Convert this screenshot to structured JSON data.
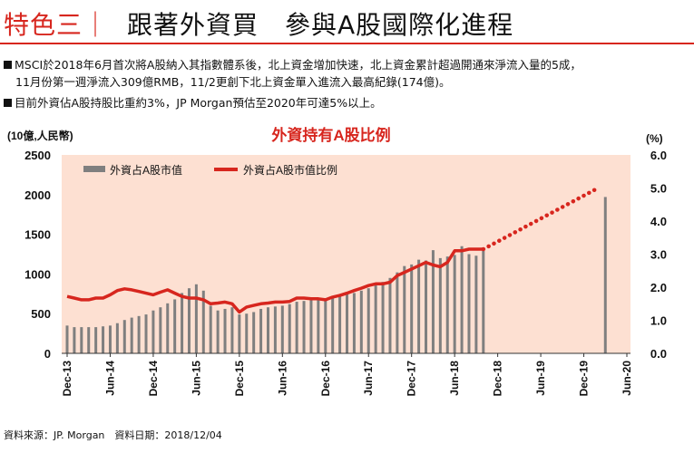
{
  "header": {
    "title_red": "特色三｜",
    "title_main": "跟著外資買　參與A股國際化進程"
  },
  "bullets": [
    {
      "line1": "MSCI於2018年6月首次將A股納入其指數體系後，北上資金增加快速，北上資金累計超過開通來淨流入量的5成，",
      "line2": "11月份第一週淨流入309億RMB，11/2更創下北上資金單入進流入最高紀錄(174億)。"
    },
    {
      "line1": "目前外資佔A股持股比重約3%，JP Morgan預估至2020年可達5%以上。"
    }
  ],
  "source": "資料來源：JP. Morgan　資料日期：2018/12/04",
  "colors": {
    "accent_red": "#d7261e",
    "plot_bg": "#fde0d2",
    "bar": "#7f7f7f"
  },
  "chart_data": {
    "type": "bar+line",
    "title": "外資持有A股比例",
    "left_axis_label": "(10億,人民幣)",
    "right_axis_label": "(%)",
    "ylim_left": [
      0,
      2500
    ],
    "ylim_right": [
      0,
      6
    ],
    "left_ticks": [
      "0",
      "500",
      "1000",
      "1500",
      "2000",
      "2500"
    ],
    "right_ticks": [
      "0.0",
      "1.0",
      "2.0",
      "3.0",
      "4.0",
      "5.0",
      "6.0"
    ],
    "x_ticks": [
      "Dec-13",
      "Jun-14",
      "Dec-14",
      "Jun-15",
      "Dec-15",
      "Jun-16",
      "Dec-16",
      "Jun-17",
      "Dec-17",
      "Jun-18",
      "Dec-18",
      "Jun-19",
      "Dec-19",
      "Jun-20"
    ],
    "legend": [
      "外資占A股市值",
      "外資占A股市值比例"
    ],
    "legend_position": "top-left",
    "bars": {
      "name": "外資占A股市值",
      "months": [
        "2013-12",
        "2014-01",
        "2014-02",
        "2014-03",
        "2014-04",
        "2014-05",
        "2014-06",
        "2014-07",
        "2014-08",
        "2014-09",
        "2014-10",
        "2014-11",
        "2014-12",
        "2015-01",
        "2015-02",
        "2015-03",
        "2015-04",
        "2015-05",
        "2015-06",
        "2015-07",
        "2015-08",
        "2015-09",
        "2015-10",
        "2015-11",
        "2015-12",
        "2016-01",
        "2016-02",
        "2016-03",
        "2016-04",
        "2016-05",
        "2016-06",
        "2016-07",
        "2016-08",
        "2016-09",
        "2016-10",
        "2016-11",
        "2016-12",
        "2017-01",
        "2017-02",
        "2017-03",
        "2017-04",
        "2017-05",
        "2017-06",
        "2017-07",
        "2017-08",
        "2017-09",
        "2017-10",
        "2017-11",
        "2017-12",
        "2018-01",
        "2018-02",
        "2018-03",
        "2018-04",
        "2018-05",
        "2018-06",
        "2018-07",
        "2018-08",
        "2018-09",
        "2018-10",
        "2020-03"
      ],
      "values": [
        350,
        330,
        330,
        330,
        330,
        340,
        350,
        380,
        420,
        450,
        470,
        490,
        540,
        580,
        630,
        680,
        760,
        820,
        870,
        790,
        600,
        540,
        560,
        580,
        490,
        500,
        520,
        560,
        580,
        590,
        600,
        620,
        650,
        660,
        670,
        680,
        690,
        700,
        720,
        750,
        760,
        790,
        820,
        860,
        900,
        950,
        1020,
        1100,
        1120,
        1180,
        1170,
        1300,
        1200,
        1220,
        1240,
        1350,
        1250,
        1230,
        1290,
        1970
      ]
    },
    "line": {
      "name": "外資占A股市值比例",
      "months": [
        "2013-12",
        "2014-01",
        "2014-02",
        "2014-03",
        "2014-04",
        "2014-05",
        "2014-06",
        "2014-07",
        "2014-08",
        "2014-09",
        "2014-10",
        "2014-11",
        "2014-12",
        "2015-01",
        "2015-02",
        "2015-03",
        "2015-04",
        "2015-05",
        "2015-06",
        "2015-07",
        "2015-08",
        "2015-09",
        "2015-10",
        "2015-11",
        "2015-12",
        "2016-01",
        "2016-02",
        "2016-03",
        "2016-04",
        "2016-05",
        "2016-06",
        "2016-07",
        "2016-08",
        "2016-09",
        "2016-10",
        "2016-11",
        "2016-12",
        "2017-01",
        "2017-02",
        "2017-03",
        "2017-04",
        "2017-05",
        "2017-06",
        "2017-07",
        "2017-08",
        "2017-09",
        "2017-10",
        "2017-11",
        "2017-12",
        "2018-01",
        "2018-02",
        "2018-03",
        "2018-04",
        "2018-05",
        "2018-06",
        "2018-07",
        "2018-08",
        "2018-09",
        "2018-10"
      ],
      "values": [
        1.72,
        1.67,
        1.62,
        1.62,
        1.67,
        1.67,
        1.77,
        1.9,
        1.95,
        1.92,
        1.87,
        1.82,
        1.77,
        1.85,
        1.92,
        1.82,
        1.72,
        1.67,
        1.67,
        1.62,
        1.5,
        1.52,
        1.55,
        1.5,
        1.25,
        1.4,
        1.45,
        1.5,
        1.52,
        1.55,
        1.55,
        1.57,
        1.67,
        1.67,
        1.65,
        1.65,
        1.62,
        1.7,
        1.75,
        1.82,
        1.9,
        1.97,
        2.05,
        2.1,
        2.1,
        2.15,
        2.35,
        2.45,
        2.55,
        2.65,
        2.75,
        2.67,
        2.62,
        2.75,
        3.1,
        3.1,
        3.15,
        3.15,
        3.15
      ]
    },
    "projection": {
      "months": [
        "2018-10",
        "2020-02"
      ],
      "values": [
        3.15,
        5.0
      ],
      "style": "dotted"
    }
  }
}
